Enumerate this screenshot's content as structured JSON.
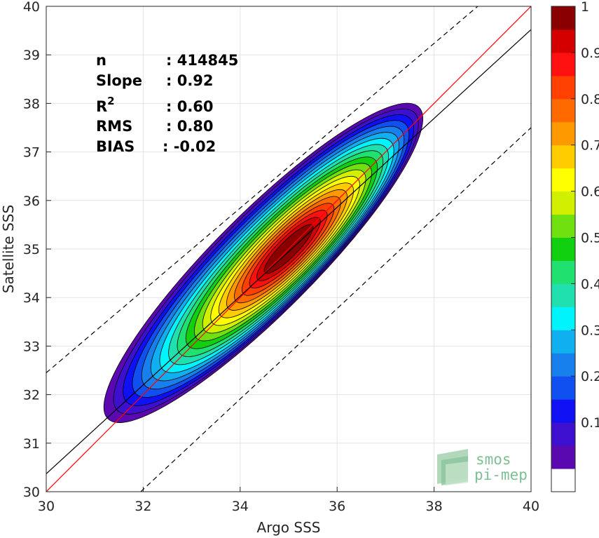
{
  "chart_data": {
    "type": "heatmap",
    "title": "",
    "xlabel": "Argo SSS",
    "ylabel": "Satellite SSS",
    "xlim": [
      30,
      40
    ],
    "ylim": [
      30,
      40
    ],
    "xticks": [
      "30",
      "32",
      "34",
      "36",
      "38",
      "40"
    ],
    "yticks": [
      "30",
      "31",
      "32",
      "33",
      "34",
      "35",
      "36",
      "37",
      "38",
      "39",
      "40"
    ],
    "grid": true,
    "description_kind": "filled density contours of Satellite SSS vs Argo SSS",
    "density_center": {
      "x": 35.0,
      "y": 35.0
    },
    "contour_levels": [
      0.05,
      0.1,
      0.15,
      0.2,
      0.25,
      0.3,
      0.35,
      0.4,
      0.45,
      0.5,
      0.55,
      0.6,
      0.65,
      0.7,
      0.75,
      0.8,
      0.85,
      0.9,
      0.95,
      1.0
    ],
    "colorbar": {
      "range": [
        0,
        1
      ],
      "tick_labels": [
        "0.1",
        "0.2",
        "0.3",
        "0.4",
        "0.5",
        "0.6",
        "0.7",
        "0.8",
        "0.9",
        "1"
      ],
      "colors": [
        "#ffffff",
        "#5a08b0",
        "#3d10d0",
        "#1010f4",
        "#1050f0",
        "#1880ec",
        "#10b0f0",
        "#00f4fc",
        "#20e0b0",
        "#20e070",
        "#10d010",
        "#70e010",
        "#d0f000",
        "#ffff00",
        "#ffcc00",
        "#ff9900",
        "#ff6a00",
        "#ff4000",
        "#ff1010",
        "#d40000",
        "#8a0000"
      ]
    },
    "lines": [
      {
        "name": "1:1",
        "color": "#ff0000",
        "style": "solid",
        "points": [
          [
            30,
            30
          ],
          [
            40,
            40
          ]
        ]
      },
      {
        "name": "fit",
        "color": "#000000",
        "style": "solid",
        "points": [
          [
            30,
            30.37
          ],
          [
            40,
            39.52
          ]
        ]
      },
      {
        "name": "upper",
        "color": "#000000",
        "style": "dashed",
        "points": [
          [
            30,
            32.45
          ],
          [
            38.9,
            40
          ]
        ]
      },
      {
        "name": "lower",
        "color": "#000000",
        "style": "dashed",
        "points": [
          [
            31.95,
            30
          ],
          [
            40,
            37.5
          ]
        ]
      }
    ],
    "stats": [
      {
        "label": "n",
        "value": ": 414845"
      },
      {
        "label": "Slope",
        "value": ": 0.92"
      },
      {
        "label": "R",
        "sup": "2",
        "value": ": 0.60"
      },
      {
        "label": "RMS",
        "value": ": 0.80"
      },
      {
        "label": "BIAS",
        "value": ": -0.02"
      }
    ]
  },
  "logo": {
    "line1": "smos",
    "line2": "pi-mep"
  }
}
